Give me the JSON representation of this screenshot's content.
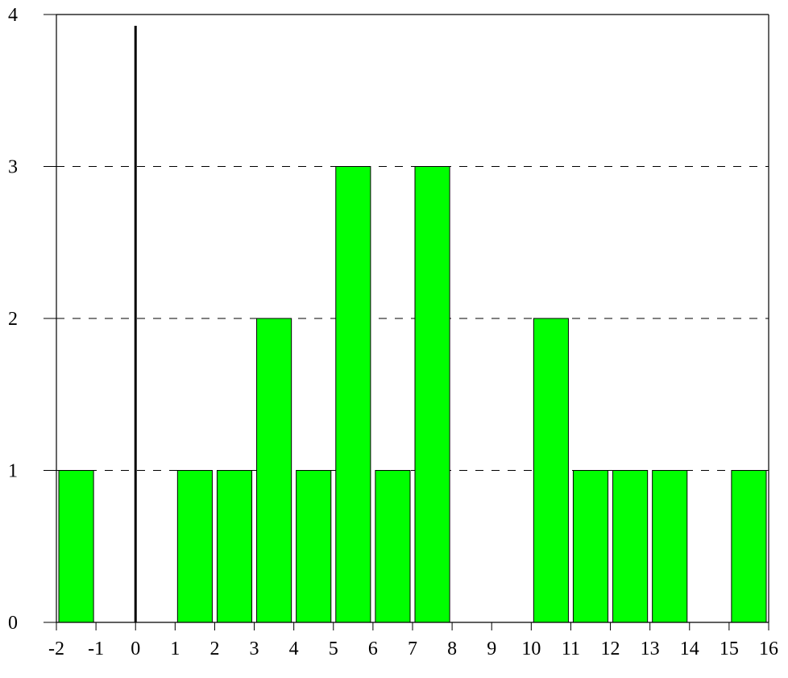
{
  "chart_data": {
    "type": "bar",
    "title": "",
    "xlabel": "",
    "ylabel": "",
    "xlim": [
      -2,
      16
    ],
    "ylim": [
      0,
      4
    ],
    "x_ticks": [
      -2,
      -1,
      0,
      1,
      2,
      3,
      4,
      5,
      6,
      7,
      8,
      9,
      10,
      11,
      12,
      13,
      14,
      15,
      16
    ],
    "y_ticks": [
      0,
      1,
      2,
      3,
      4
    ],
    "grid": "dashed horizontal at y = 1, 2, 3",
    "reference_line_x": 0,
    "bar_color": "#00ff00",
    "bins": [
      {
        "start": -2,
        "end": -1,
        "value": 1
      },
      {
        "start": -1,
        "end": 0,
        "value": 0
      },
      {
        "start": 0,
        "end": 1,
        "value": 0
      },
      {
        "start": 1,
        "end": 2,
        "value": 1
      },
      {
        "start": 2,
        "end": 3,
        "value": 1
      },
      {
        "start": 3,
        "end": 4,
        "value": 2
      },
      {
        "start": 4,
        "end": 5,
        "value": 1
      },
      {
        "start": 5,
        "end": 6,
        "value": 3
      },
      {
        "start": 6,
        "end": 7,
        "value": 1
      },
      {
        "start": 7,
        "end": 8,
        "value": 3
      },
      {
        "start": 8,
        "end": 9,
        "value": 0
      },
      {
        "start": 9,
        "end": 10,
        "value": 0
      },
      {
        "start": 10,
        "end": 11,
        "value": 2
      },
      {
        "start": 11,
        "end": 12,
        "value": 1
      },
      {
        "start": 12,
        "end": 13,
        "value": 1
      },
      {
        "start": 13,
        "end": 14,
        "value": 1
      },
      {
        "start": 14,
        "end": 15,
        "value": 0
      },
      {
        "start": 15,
        "end": 16,
        "value": 1
      }
    ]
  }
}
